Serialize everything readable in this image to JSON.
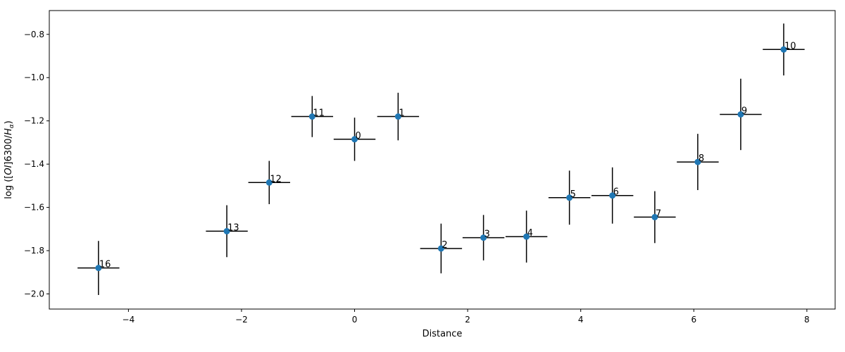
{
  "chart_data": {
    "type": "scatter",
    "title": "",
    "xlabel": "Distance",
    "ylabel": "log ([OI]6300/Hα)",
    "ylabel_parts": {
      "pre": "log ([",
      "oi": "OI",
      "mid": "]6300/",
      "h": "H",
      "alpha": "α",
      "post": ")"
    },
    "xlim": [
      -5.4,
      8.5
    ],
    "ylim": [
      -2.07,
      -0.69
    ],
    "xticks": [
      -4,
      -2,
      0,
      2,
      4,
      6,
      8
    ],
    "xtick_labels": [
      "−4",
      "−2",
      "0",
      "2",
      "4",
      "6",
      "8"
    ],
    "yticks": [
      -2.0,
      -1.8,
      -1.6,
      -1.4,
      -1.2,
      -1.0,
      -0.8
    ],
    "ytick_labels": [
      "−2.0",
      "−1.8",
      "−1.6",
      "−1.4",
      "−1.2",
      "−1.0",
      "−0.8"
    ],
    "grid": false,
    "marker_color": "#1f77b4",
    "errorbar_color": "#000000",
    "points": [
      {
        "label": "16",
        "x": -4.53,
        "y": -1.88,
        "xerr": 0.37,
        "yerr": 0.125
      },
      {
        "label": "13",
        "x": -2.26,
        "y": -1.71,
        "xerr": 0.37,
        "yerr": 0.12
      },
      {
        "label": "12",
        "x": -1.51,
        "y": -1.485,
        "xerr": 0.37,
        "yerr": 0.1
      },
      {
        "label": "11",
        "x": -0.75,
        "y": -1.18,
        "xerr": 0.37,
        "yerr": 0.095
      },
      {
        "label": "0",
        "x": 0.0,
        "y": -1.285,
        "xerr": 0.37,
        "yerr": 0.1
      },
      {
        "label": "1",
        "x": 0.77,
        "y": -1.18,
        "xerr": 0.37,
        "yerr": 0.11
      },
      {
        "label": "2",
        "x": 1.53,
        "y": -1.79,
        "xerr": 0.37,
        "yerr": 0.115
      },
      {
        "label": "3",
        "x": 2.28,
        "y": -1.74,
        "xerr": 0.37,
        "yerr": 0.105
      },
      {
        "label": "4",
        "x": 3.04,
        "y": -1.735,
        "xerr": 0.37,
        "yerr": 0.12
      },
      {
        "label": "5",
        "x": 3.8,
        "y": -1.555,
        "xerr": 0.37,
        "yerr": 0.125
      },
      {
        "label": "6",
        "x": 4.56,
        "y": -1.545,
        "xerr": 0.37,
        "yerr": 0.13
      },
      {
        "label": "7",
        "x": 5.31,
        "y": -1.645,
        "xerr": 0.37,
        "yerr": 0.12
      },
      {
        "label": "8",
        "x": 6.07,
        "y": -1.39,
        "xerr": 0.37,
        "yerr": 0.13
      },
      {
        "label": "9",
        "x": 6.83,
        "y": -1.17,
        "xerr": 0.37,
        "yerr": 0.165
      },
      {
        "label": "10",
        "x": 7.59,
        "y": -0.87,
        "xerr": 0.37,
        "yerr": 0.12
      }
    ]
  }
}
